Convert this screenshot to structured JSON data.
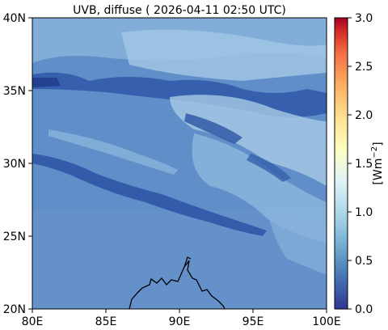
{
  "title": "UVB, diffuse ( 2026-04-11 02:50 UTC)",
  "x_ticks": [
    "80E",
    "85E",
    "90E",
    "95E",
    "100E"
  ],
  "y_ticks": [
    "40N",
    "35N",
    "30N",
    "25N",
    "20N"
  ],
  "colorbar": {
    "ticks": [
      "3.0",
      "2.5",
      "2.0",
      "1.5",
      "1.0",
      "0.5",
      "0.0"
    ],
    "label_prefix": "[Wm",
    "label_exponent": "−2",
    "label_suffix": "]",
    "colors": [
      "#313695",
      "#4575b4",
      "#74add1",
      "#abd9e9",
      "#e0f3f8",
      "#fee090",
      "#fdae61",
      "#f46d43",
      "#d73027",
      "#a50026"
    ]
  },
  "map": {
    "lon_range": [
      80,
      100
    ],
    "lat_range": [
      20,
      40
    ],
    "base_color": "#5d8cc8",
    "high_value_color": "#a9cce6",
    "low_value_color": "#2f56a6",
    "coastline_color": "#000000"
  }
}
